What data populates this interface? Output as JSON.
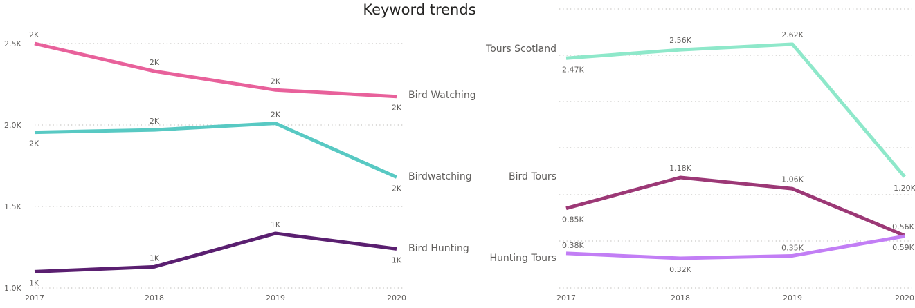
{
  "title": "Keyword trends",
  "colors": {
    "bird_watching": "#e8619b",
    "birdwatching": "#58c9c3",
    "bird_hunting": "#5a1f70",
    "tours_scotland": "#8ee8ca",
    "bird_tours": "#9c3876",
    "hunting_tours": "#c27ef5"
  },
  "chart_data": [
    {
      "type": "line",
      "x": [
        "2017",
        "2018",
        "2019",
        "2020"
      ],
      "ylim": [
        1000,
        2500
      ],
      "yticks": [
        1000,
        1500,
        2000,
        2500
      ],
      "ytick_labels": [
        "1.0K",
        "1.5K",
        "2.0K",
        "2.5K"
      ],
      "grid": true,
      "series": [
        {
          "name": "Bird Watching",
          "color": "#e8619b",
          "values": [
            2500,
            2330,
            2215,
            2175
          ],
          "labels": [
            "2K",
            "2K",
            "2K",
            "2K"
          ]
        },
        {
          "name": "Birdwatching",
          "color": "#58c9c3",
          "values": [
            1955,
            1970,
            2010,
            1680
          ],
          "labels": [
            "2K",
            "2K",
            "2K",
            "2K"
          ]
        },
        {
          "name": "Bird Hunting",
          "color": "#5a1f70",
          "values": [
            1100,
            1130,
            1335,
            1240
          ],
          "labels": [
            "1K",
            "1K",
            "1K",
            "1K"
          ]
        }
      ]
    },
    {
      "type": "line",
      "x": [
        "2017",
        "2018",
        "2019",
        "2020"
      ],
      "grid": true,
      "series": [
        {
          "name": "Tours Scotland",
          "color": "#8ee8ca",
          "values": [
            2470,
            2560,
            2620,
            1200
          ],
          "labels": [
            "2.47K",
            "2.56K",
            "2.62K",
            "1.20K"
          ]
        },
        {
          "name": "Bird Tours",
          "color": "#9c3876",
          "values": [
            850,
            1180,
            1060,
            560
          ],
          "labels": [
            "0.85K",
            "1.18K",
            "1.06K",
            "0.56K"
          ]
        },
        {
          "name": "Hunting Tours",
          "color": "#c27ef5",
          "values": [
            380,
            320,
            350,
            590
          ],
          "labels": [
            "0.38K",
            "0.32K",
            "0.35K",
            "0.59K"
          ]
        }
      ]
    }
  ]
}
